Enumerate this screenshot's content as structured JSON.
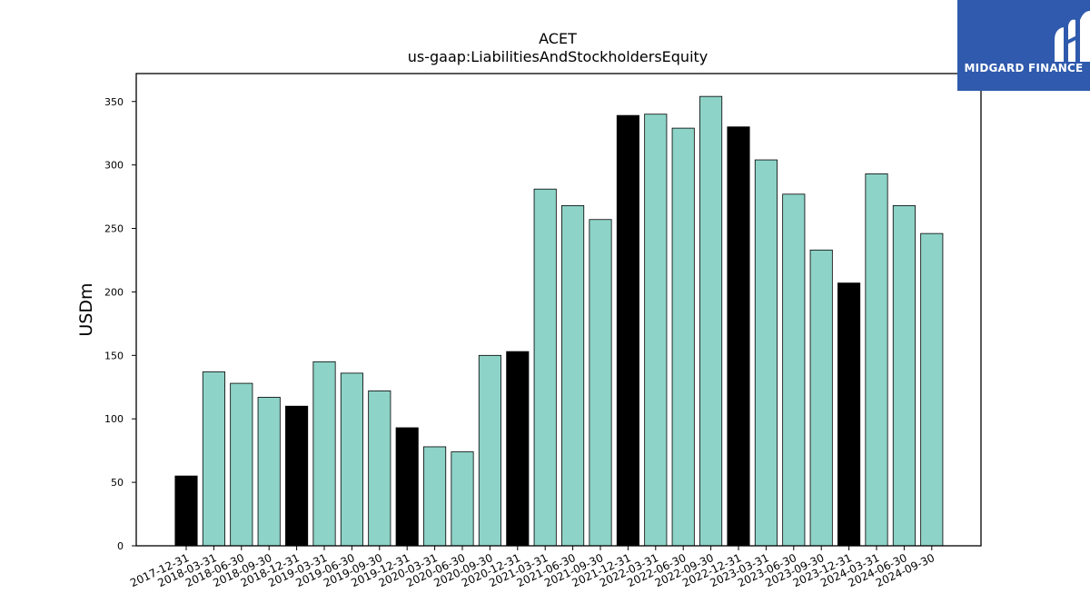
{
  "brand": {
    "logo_text": "MIDGARD FINANCE",
    "logo_bg": "#2f5aad"
  },
  "chart_data": {
    "type": "bar",
    "title": "ACET",
    "subtitle": "us-gaap:LiabilitiesAndStockholdersEquity",
    "xlabel": "",
    "ylabel": "USDm",
    "ylim": [
      0,
      372
    ],
    "yticks": [
      0,
      50,
      100,
      150,
      200,
      250,
      300,
      350
    ],
    "grid": false,
    "colors": {
      "quarter": "#8dd3c7",
      "year_end": "#000000",
      "edge": "#000000"
    },
    "categories": [
      "2017-12-31",
      "2018-03-31",
      "2018-06-30",
      "2018-09-30",
      "2018-12-31",
      "2019-03-31",
      "2019-06-30",
      "2019-09-30",
      "2019-12-31",
      "2020-03-31",
      "2020-06-30",
      "2020-09-30",
      "2020-12-31",
      "2021-03-31",
      "2021-06-30",
      "2021-09-30",
      "2021-12-31",
      "2022-03-31",
      "2022-06-30",
      "2022-09-30",
      "2022-12-31",
      "2023-03-31",
      "2023-06-30",
      "2023-09-30",
      "2023-12-31",
      "2024-03-31",
      "2024-06-30",
      "2024-09-30"
    ],
    "values": [
      55,
      137,
      128,
      117,
      110,
      145,
      136,
      122,
      93,
      78,
      74,
      150,
      153,
      281,
      268,
      257,
      339,
      340,
      329,
      354,
      330,
      304,
      277,
      233,
      207,
      293,
      268,
      246
    ]
  }
}
